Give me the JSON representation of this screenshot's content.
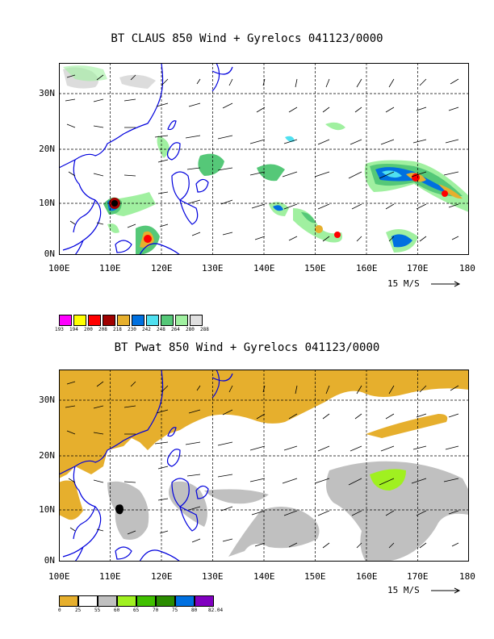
{
  "panel1": {
    "title": "BT CLAUS 850 Wind + Gyrelocs 041123/0000",
    "x_ticks": [
      "100E",
      "110E",
      "120E",
      "130E",
      "140E",
      "150E",
      "160E",
      "170E",
      "180"
    ],
    "y_ticks": [
      "0N",
      "10N",
      "20N",
      "30N"
    ],
    "scale_label": "15 M/S",
    "colorbar": {
      "colors": [
        "#ff00ff",
        "#ffff00",
        "#ff0000",
        "#a00000",
        "#e6af2d",
        "#0070e0",
        "#4fe0f0",
        "#55c878",
        "#a0f0a0",
        "#e0e0e0"
      ],
      "labels": [
        "193",
        "194",
        "200",
        "208",
        "218",
        "230",
        "242",
        "248",
        "264",
        "280",
        "288"
      ]
    }
  },
  "panel2": {
    "title": "BT Pwat 850 Wind + Gyrelocs 041123/0000",
    "x_ticks": [
      "100E",
      "110E",
      "120E",
      "130E",
      "140E",
      "150E",
      "160E",
      "170E",
      "180"
    ],
    "y_ticks": [
      "0N",
      "10N",
      "20N",
      "30N"
    ],
    "scale_label": "15 M/S",
    "colorbar": {
      "colors": [
        "#e6af2d",
        "#ffffff",
        "#c0c0c0",
        "#a0f020",
        "#40c000",
        "#2a8c00",
        "#0070e0",
        "#8000c0"
      ],
      "labels": [
        "0",
        "25",
        "55",
        "60",
        "65",
        "70",
        "75",
        "80",
        "82.04"
      ]
    }
  }
}
